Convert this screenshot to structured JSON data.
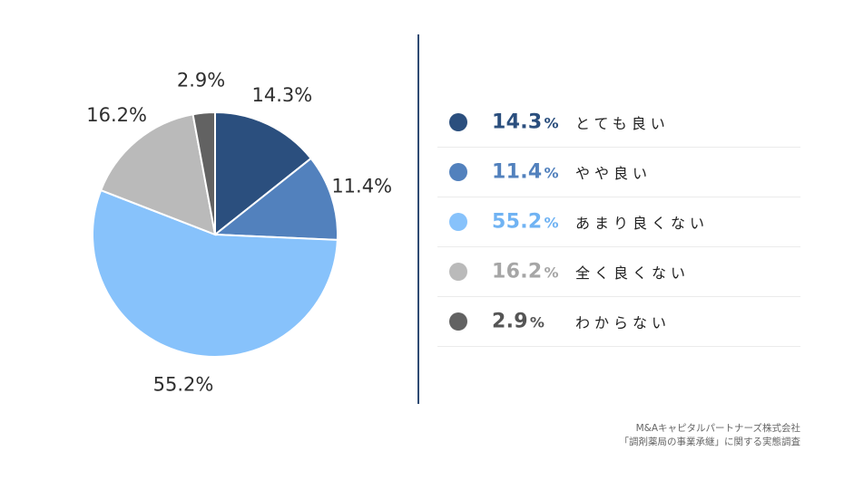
{
  "chart_data": {
    "type": "pie",
    "slices": [
      {
        "label": "とても良い",
        "value": 14.3,
        "value_text": "14.3",
        "color": "#2b4f7e",
        "text_color": "#2b4f7e"
      },
      {
        "label": "やや良い",
        "value": 11.4,
        "value_text": "11.4",
        "color": "#5281bd",
        "text_color": "#5281bd"
      },
      {
        "label": "あまり良くない",
        "value": 55.2,
        "value_text": "55.2",
        "color": "#87c2fb",
        "text_color": "#70b3f3"
      },
      {
        "label": "全く良くない",
        "value": 16.2,
        "value_text": "16.2",
        "color": "#bababa",
        "text_color": "#a6a6a6"
      },
      {
        "label": "わからない",
        "value": 2.9,
        "value_text": "2.9",
        "color": "#626262",
        "text_color": "#555555"
      }
    ],
    "unit": "%",
    "start_angle_deg": 0,
    "direction": "clockwise",
    "legend_placement": "right"
  },
  "source": {
    "line1": "M&Aキャピタルパートナーズ株式会社",
    "line2": "「調剤薬局の事業承継」に関する実態調査"
  }
}
